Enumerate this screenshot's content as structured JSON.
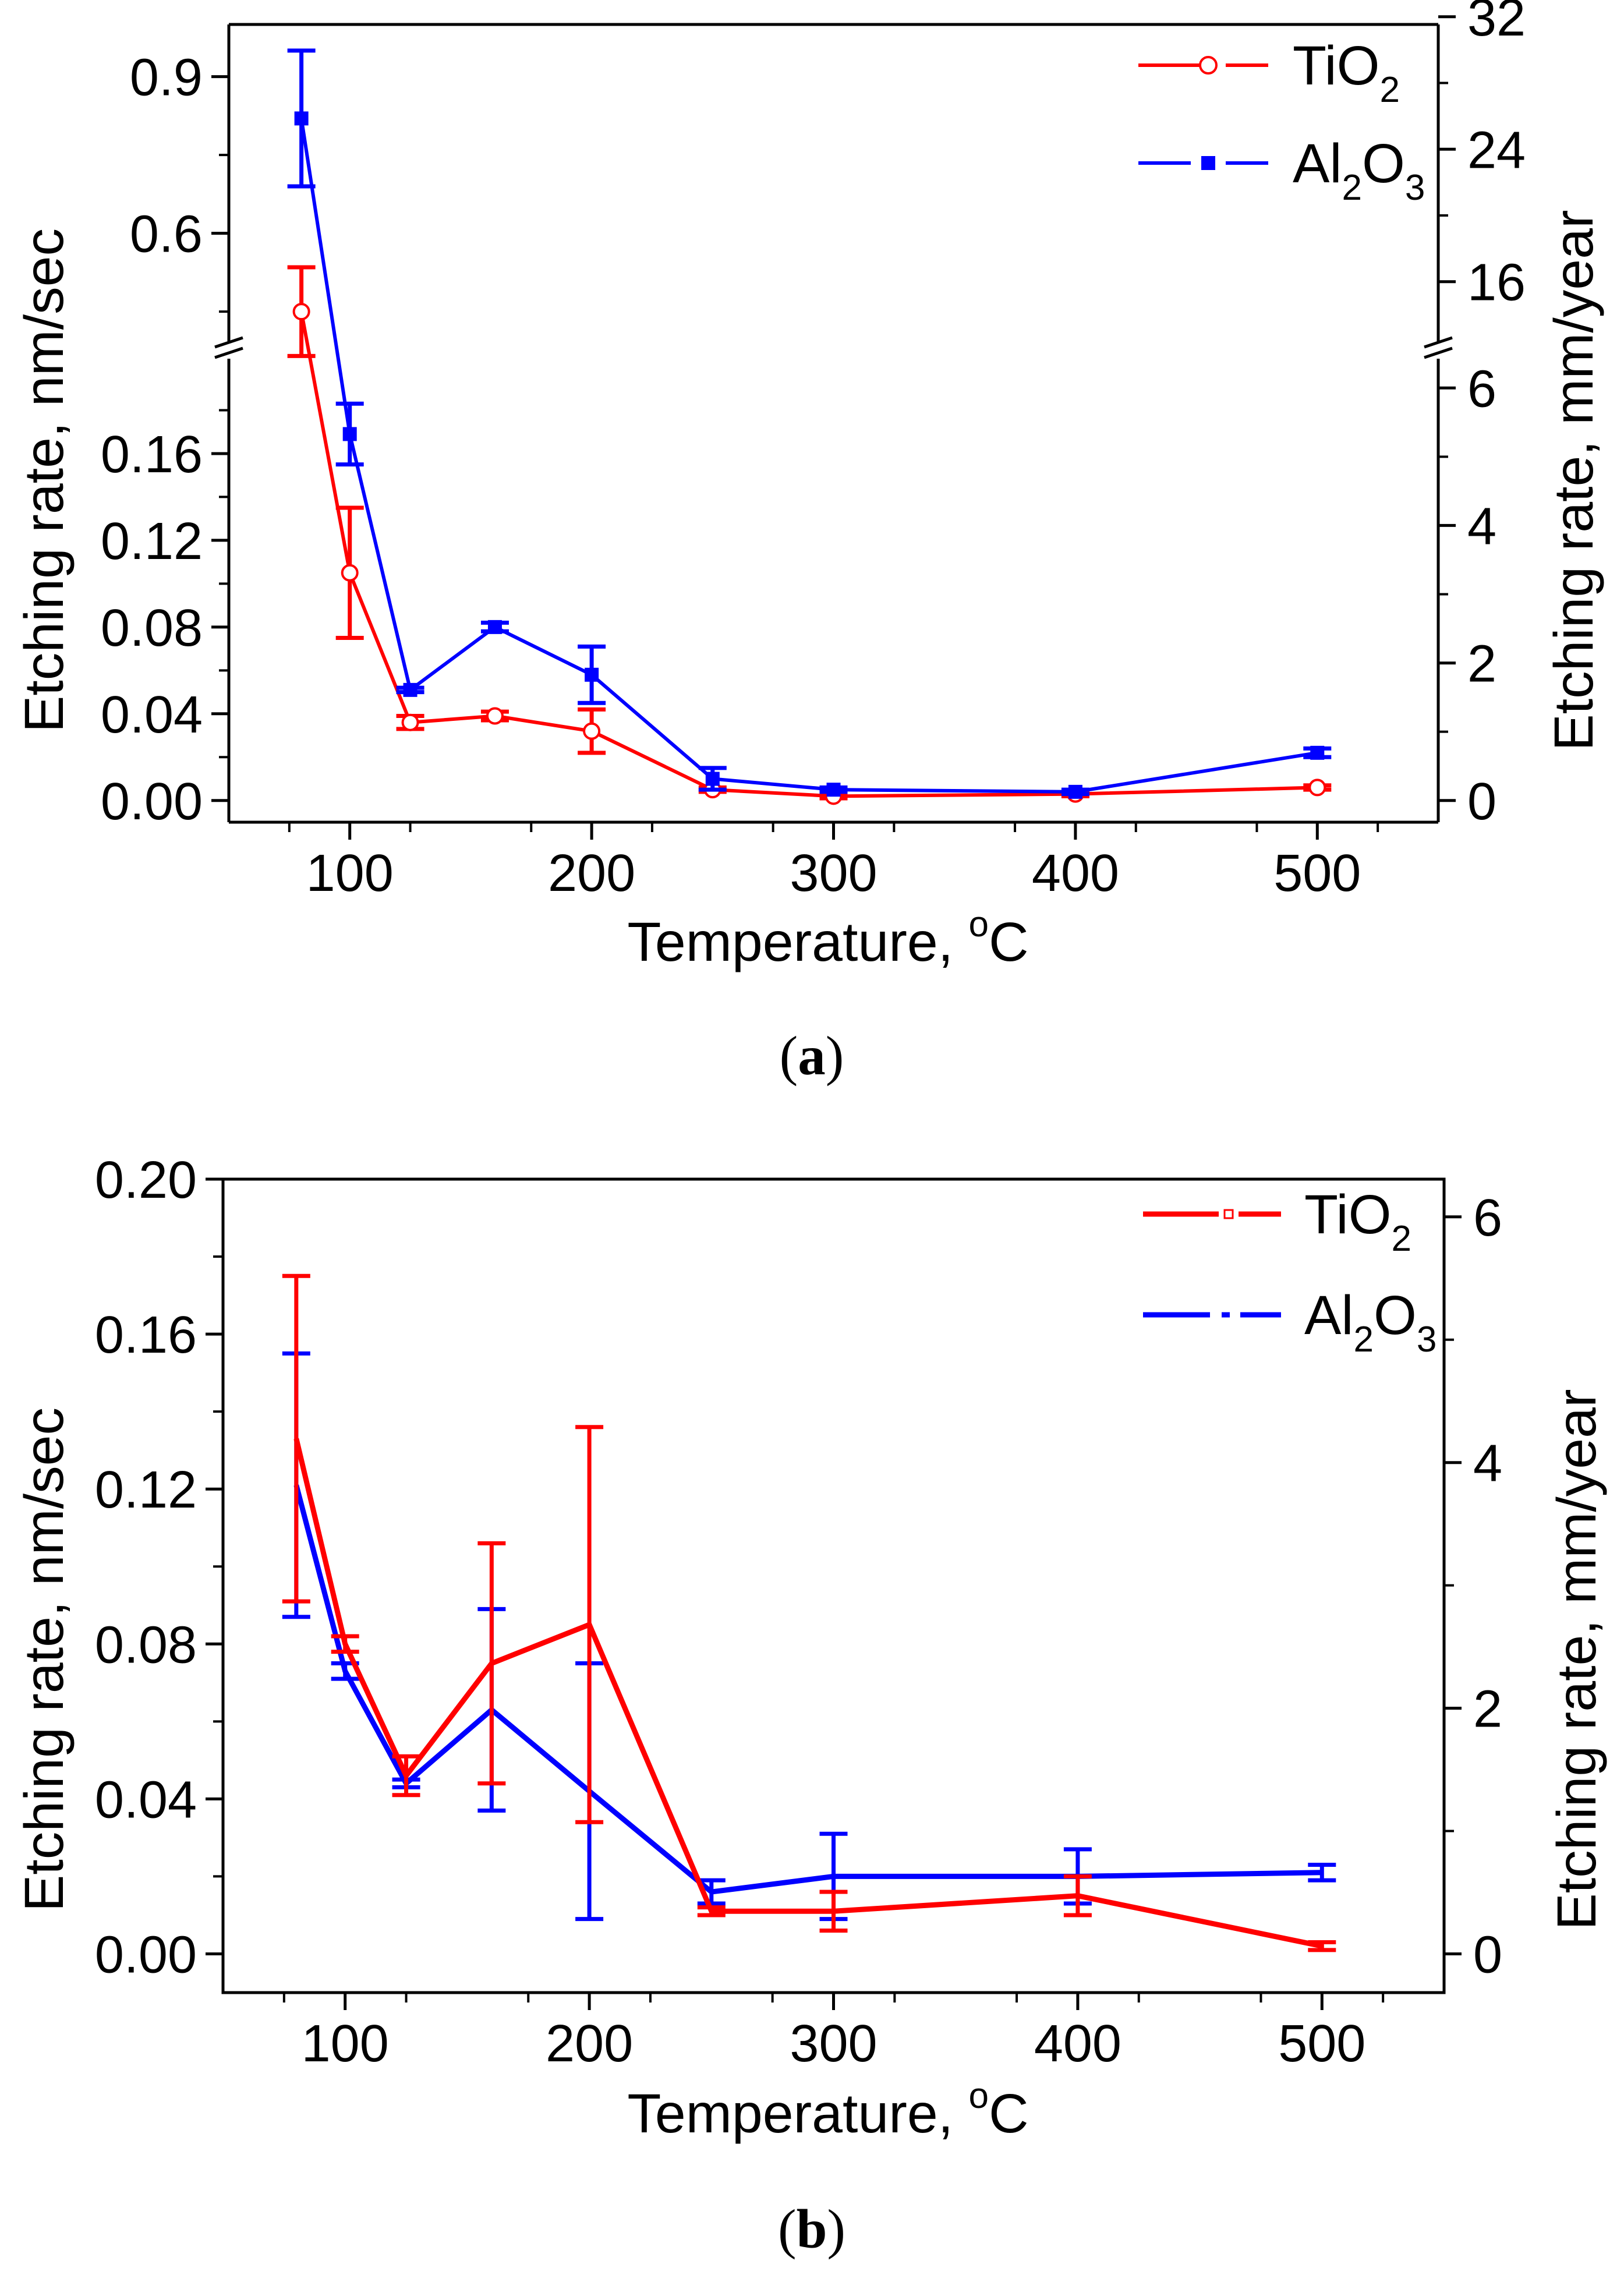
{
  "chart_data": [
    {
      "type": "line",
      "panel": "a",
      "caption": "(a)",
      "caption_letter": "a",
      "xlabel": "Temperature, ",
      "xlabel_sup": "o",
      "xlabel_unit": "C",
      "ylabel_left": "Etching rate, nm/sec",
      "ylabel_right": "Etching rate, mm/year",
      "xlim": [
        50,
        550
      ],
      "ylim_lower": [
        -0.01,
        0.2
      ],
      "ylim_upper": [
        0.4,
        1.0
      ],
      "y_break": "0.2 // 0.4",
      "ylim_right_lower": [
        -0.31536,
        6.3072
      ],
      "ylim_right_upper": [
        12.6144,
        31.536
      ],
      "xticks": [
        100,
        200,
        300,
        400,
        500
      ],
      "xtick_labels": [
        "100",
        "200",
        "300",
        "400",
        "500"
      ],
      "yticks_lower": [
        0.0,
        0.04,
        0.08,
        0.12,
        0.16
      ],
      "ytick_labels_lower": [
        "0.00",
        "0.04",
        "0.08",
        "0.12",
        "0.16"
      ],
      "yticks_upper": [
        0.6,
        0.9
      ],
      "ytick_labels_upper": [
        "0.6",
        "0.9"
      ],
      "yticks_right_lower": [
        0,
        2,
        4,
        6
      ],
      "ytick_labels_right_lower": [
        "0",
        "2",
        "4",
        "6"
      ],
      "yticks_right_upper": [
        16,
        24,
        32
      ],
      "ytick_labels_right_upper": [
        "16",
        "24",
        "32"
      ],
      "legend_position": "top-right",
      "series": [
        {
          "name": "TiO2",
          "label_main": "TiO",
          "label_sub": "2",
          "color": "#ff0000",
          "marker": "open-circle",
          "x": [
            80,
            100,
            125,
            160,
            200,
            250,
            300,
            400,
            500
          ],
          "y": [
            0.45,
            0.105,
            0.036,
            0.039,
            0.032,
            0.005,
            0.002,
            0.003,
            0.006
          ],
          "err": [
            0.085,
            0.03,
            0.003,
            0.002,
            0.01,
            0.001,
            0.001,
            0.001,
            0.001
          ]
        },
        {
          "name": "Al2O3",
          "label_main": "Al",
          "label_sub1": "2",
          "label_mid": "O",
          "label_sub2": "3",
          "color": "#0000ff",
          "marker": "filled-square",
          "x": [
            80,
            100,
            125,
            160,
            200,
            250,
            300,
            400,
            500
          ],
          "y": [
            0.82,
            0.169,
            0.051,
            0.08,
            0.058,
            0.01,
            0.005,
            0.004,
            0.022
          ],
          "err": [
            0.13,
            0.014,
            0.001,
            0.002,
            0.013,
            0.005,
            0.001,
            0.001,
            0.002
          ]
        }
      ]
    },
    {
      "type": "line",
      "panel": "b",
      "caption": "(b)",
      "caption_letter": "b",
      "xlabel": "Temperature, ",
      "xlabel_sup": "o",
      "xlabel_unit": "C",
      "ylabel_left": "Etching rate, nm/sec",
      "ylabel_right": "Etching rate, mm/year",
      "xlim": [
        50,
        550
      ],
      "ylim": [
        -0.01,
        0.2
      ],
      "ylim_right": [
        -0.31536,
        6.3072
      ],
      "xticks": [
        100,
        200,
        300,
        400,
        500
      ],
      "xtick_labels": [
        "100",
        "200",
        "300",
        "400",
        "500"
      ],
      "yticks": [
        0.0,
        0.04,
        0.08,
        0.12,
        0.16,
        0.2
      ],
      "ytick_labels": [
        "0.00",
        "0.04",
        "0.08",
        "0.12",
        "0.16",
        "0.20"
      ],
      "yticks_right": [
        0,
        2,
        4,
        6
      ],
      "ytick_labels_right": [
        "0",
        "2",
        "4",
        "6"
      ],
      "legend_position": "top-right",
      "series": [
        {
          "name": "TiO2",
          "label_main": "TiO",
          "label_sub": "2",
          "color": "#ff0000",
          "marker": "small-open-square",
          "x": [
            80,
            100,
            125,
            160,
            200,
            250,
            300,
            400,
            500
          ],
          "y": [
            0.133,
            0.08,
            0.046,
            0.075,
            0.085,
            0.011,
            0.011,
            0.015,
            0.002
          ],
          "err": [
            0.042,
            0.002,
            0.005,
            0.031,
            0.051,
            0.001,
            0.005,
            0.005,
            0.001
          ]
        },
        {
          "name": "Al2O3",
          "label_main": "Al",
          "label_sub1": "2",
          "label_mid": "O",
          "label_sub2": "3",
          "color": "#0000ff",
          "marker": "none",
          "x": [
            80,
            100,
            125,
            160,
            200,
            250,
            300,
            400,
            500
          ],
          "y": [
            0.121,
            0.073,
            0.044,
            0.063,
            0.042,
            0.016,
            0.02,
            0.02,
            0.021
          ],
          "err": [
            0.034,
            0.002,
            0.001,
            0.026,
            0.033,
            0.003,
            0.011,
            0.007,
            0.002
          ]
        }
      ]
    }
  ]
}
